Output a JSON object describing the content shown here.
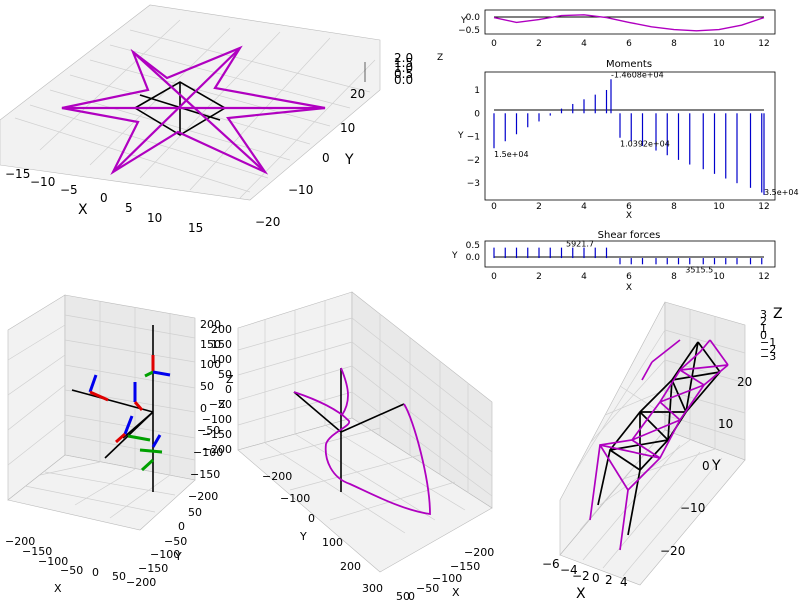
{
  "colors": {
    "deformed": "#b000c0",
    "undeformed": "#000000",
    "diagram": "#0000cc",
    "triad_x": "#e00000",
    "triad_y": "#00a000",
    "triad_z": "#0000ee"
  },
  "chart_data": [
    {
      "type": "line3d",
      "id": "star-3d",
      "xlabel": "X",
      "ylabel": "Y",
      "zlabel": "",
      "xticks": [
        "−15",
        "−10",
        "−5",
        "0",
        "5",
        "10",
        "15"
      ],
      "yticks": [
        "−20",
        "−10",
        "0",
        "10",
        "20"
      ],
      "zticks": [
        "0.0",
        "0.5",
        "1.0",
        "1.5",
        "2.0"
      ],
      "series": [
        {
          "role": "undeformed"
        },
        {
          "role": "deformed"
        }
      ]
    },
    {
      "type": "line",
      "id": "top-strip",
      "xlabel": "",
      "ylabel": "Y",
      "x_ticks": [
        "0",
        "2",
        "4",
        "6",
        "8",
        "10",
        "12"
      ],
      "y_ticks": [
        "0.0",
        "−0.5"
      ],
      "xlim": [
        0,
        12
      ],
      "ylim": [
        -0.6,
        0.15
      ],
      "curve": [
        {
          "x": 0,
          "y": -0.05
        },
        {
          "x": 1,
          "y": -0.22
        },
        {
          "x": 2,
          "y": -0.12
        },
        {
          "x": 3,
          "y": 0.02
        },
        {
          "x": 4,
          "y": 0.05
        },
        {
          "x": 5,
          "y": -0.05
        },
        {
          "x": 6,
          "y": -0.22
        },
        {
          "x": 7,
          "y": -0.38
        },
        {
          "x": 8,
          "y": -0.48
        },
        {
          "x": 9,
          "y": -0.52
        },
        {
          "x": 10,
          "y": -0.48
        },
        {
          "x": 11,
          "y": -0.32
        },
        {
          "x": 12,
          "y": -0.05
        }
      ]
    },
    {
      "type": "bar",
      "id": "moments",
      "title": "Moments",
      "xlabel": "X",
      "ylabel": "Y",
      "x_ticks": [
        "0",
        "2",
        "4",
        "6",
        "8",
        "10",
        "12"
      ],
      "y_ticks": [
        "1",
        "0",
        "−1",
        "−2",
        "−3"
      ],
      "xlim": [
        0,
        12
      ],
      "ylim": [
        -3.55,
        1.6
      ],
      "values": [
        {
          "x": 0,
          "y": -1.5
        },
        {
          "x": 0.5,
          "y": -1.2
        },
        {
          "x": 1,
          "y": -0.9
        },
        {
          "x": 1.5,
          "y": -0.6
        },
        {
          "x": 2,
          "y": -0.35
        },
        {
          "x": 2.5,
          "y": -0.1
        },
        {
          "x": 3,
          "y": 0.2
        },
        {
          "x": 3.5,
          "y": 0.4
        },
        {
          "x": 4,
          "y": 0.6
        },
        {
          "x": 4.5,
          "y": 0.8
        },
        {
          "x": 5,
          "y": 1.0
        },
        {
          "x": 5.2,
          "y": 1.46
        },
        {
          "x": 5.6,
          "y": -1.05
        },
        {
          "x": 6.1,
          "y": -1.2
        },
        {
          "x": 6.6,
          "y": -1.4
        },
        {
          "x": 7.2,
          "y": -1.6
        },
        {
          "x": 7.7,
          "y": -1.8
        },
        {
          "x": 8.2,
          "y": -2.0
        },
        {
          "x": 8.7,
          "y": -2.2
        },
        {
          "x": 9.3,
          "y": -2.4
        },
        {
          "x": 9.8,
          "y": -2.6
        },
        {
          "x": 10.3,
          "y": -2.8
        },
        {
          "x": 10.8,
          "y": -3.0
        },
        {
          "x": 11.4,
          "y": -3.2
        },
        {
          "x": 11.9,
          "y": -3.4
        },
        {
          "x": 12,
          "y": -3.5
        }
      ],
      "annotations": [
        {
          "text": "-1.4608e+04",
          "x": 5.2,
          "y": 1.46
        },
        {
          "text": "1.5e+04",
          "x": 0,
          "y": -1.5
        },
        {
          "text": "1.0392e+04",
          "x": 5.6,
          "y": -1.05
        },
        {
          "text": "3.5e+04",
          "x": 12,
          "y": -3.5
        }
      ]
    },
    {
      "type": "bar",
      "id": "shear",
      "title": "Shear forces",
      "xlabel": "X",
      "ylabel": "Y",
      "x_ticks": [
        "0",
        "2",
        "4",
        "6",
        "8",
        "10",
        "12"
      ],
      "y_ticks": [
        "0.5",
        "0.0"
      ],
      "xlim": [
        0,
        12
      ],
      "ylim": [
        -0.3,
        0.65
      ],
      "values": [
        {
          "x": 0,
          "y": 0.45
        },
        {
          "x": 0.5,
          "y": 0.45
        },
        {
          "x": 1,
          "y": 0.45
        },
        {
          "x": 1.5,
          "y": 0.45
        },
        {
          "x": 2,
          "y": 0.45
        },
        {
          "x": 2.5,
          "y": 0.45
        },
        {
          "x": 3,
          "y": 0.45
        },
        {
          "x": 3.5,
          "y": 0.45
        },
        {
          "x": 4,
          "y": 0.45
        },
        {
          "x": 4.5,
          "y": 0.45
        },
        {
          "x": 5,
          "y": 0.45
        },
        {
          "x": 5.6,
          "y": -0.27
        },
        {
          "x": 6.1,
          "y": -0.27
        },
        {
          "x": 6.6,
          "y": -0.27
        },
        {
          "x": 7.2,
          "y": -0.27
        },
        {
          "x": 7.7,
          "y": -0.27
        },
        {
          "x": 8.2,
          "y": -0.27
        },
        {
          "x": 8.7,
          "y": -0.27
        },
        {
          "x": 9.3,
          "y": -0.27
        },
        {
          "x": 9.8,
          "y": -0.27
        },
        {
          "x": 10.3,
          "y": -0.27
        },
        {
          "x": 10.8,
          "y": -0.27
        },
        {
          "x": 11.4,
          "y": -0.27
        },
        {
          "x": 11.9,
          "y": -0.27
        }
      ],
      "annotations": [
        {
          "text": "5921.7",
          "x": 3.2,
          "y": 0.45
        },
        {
          "text": "3515.5",
          "x": 8.5,
          "y": -0.27
        }
      ]
    },
    {
      "type": "line3d",
      "id": "triads-3d",
      "xlabel": "X",
      "ylabel": "Y",
      "zlabel": "Z",
      "xticks": [
        "−200",
        "−150",
        "−100",
        "−50",
        "0",
        "50"
      ],
      "yticks": [
        "−200",
        "−150",
        "−100",
        "−50",
        "0",
        "50"
      ],
      "zticks": [
        "200",
        "150",
        "100",
        "50",
        "0",
        "−50",
        "−100",
        "−150",
        "−200"
      ]
    },
    {
      "type": "line3d",
      "id": "curve-3d",
      "xlabel": "X",
      "ylabel": "Y",
      "zlabel": "Z",
      "xticks": [
        "−200",
        "−150",
        "−100",
        "−50",
        "0",
        "50"
      ],
      "yticks": [
        "−200",
        "−100",
        "0",
        "100",
        "200",
        "300"
      ],
      "zticks": [
        "200",
        "150",
        "100",
        "50",
        "0",
        "−50",
        "−100",
        "−150",
        "−200"
      ]
    },
    {
      "type": "line3d",
      "id": "truss-3d",
      "xlabel": "X",
      "ylabel": "Y",
      "zlabel": "Z",
      "xticks": [
        "−6",
        "−4",
        "−2",
        "0",
        "2",
        "4"
      ],
      "yticks": [
        "20",
        "10",
        "0",
        "−10",
        "−20"
      ],
      "zticks": [
        "3",
        "2",
        "1",
        "0",
        "−1",
        "−2",
        "−3"
      ]
    }
  ],
  "labels": {
    "top_strip_side": "Z"
  }
}
